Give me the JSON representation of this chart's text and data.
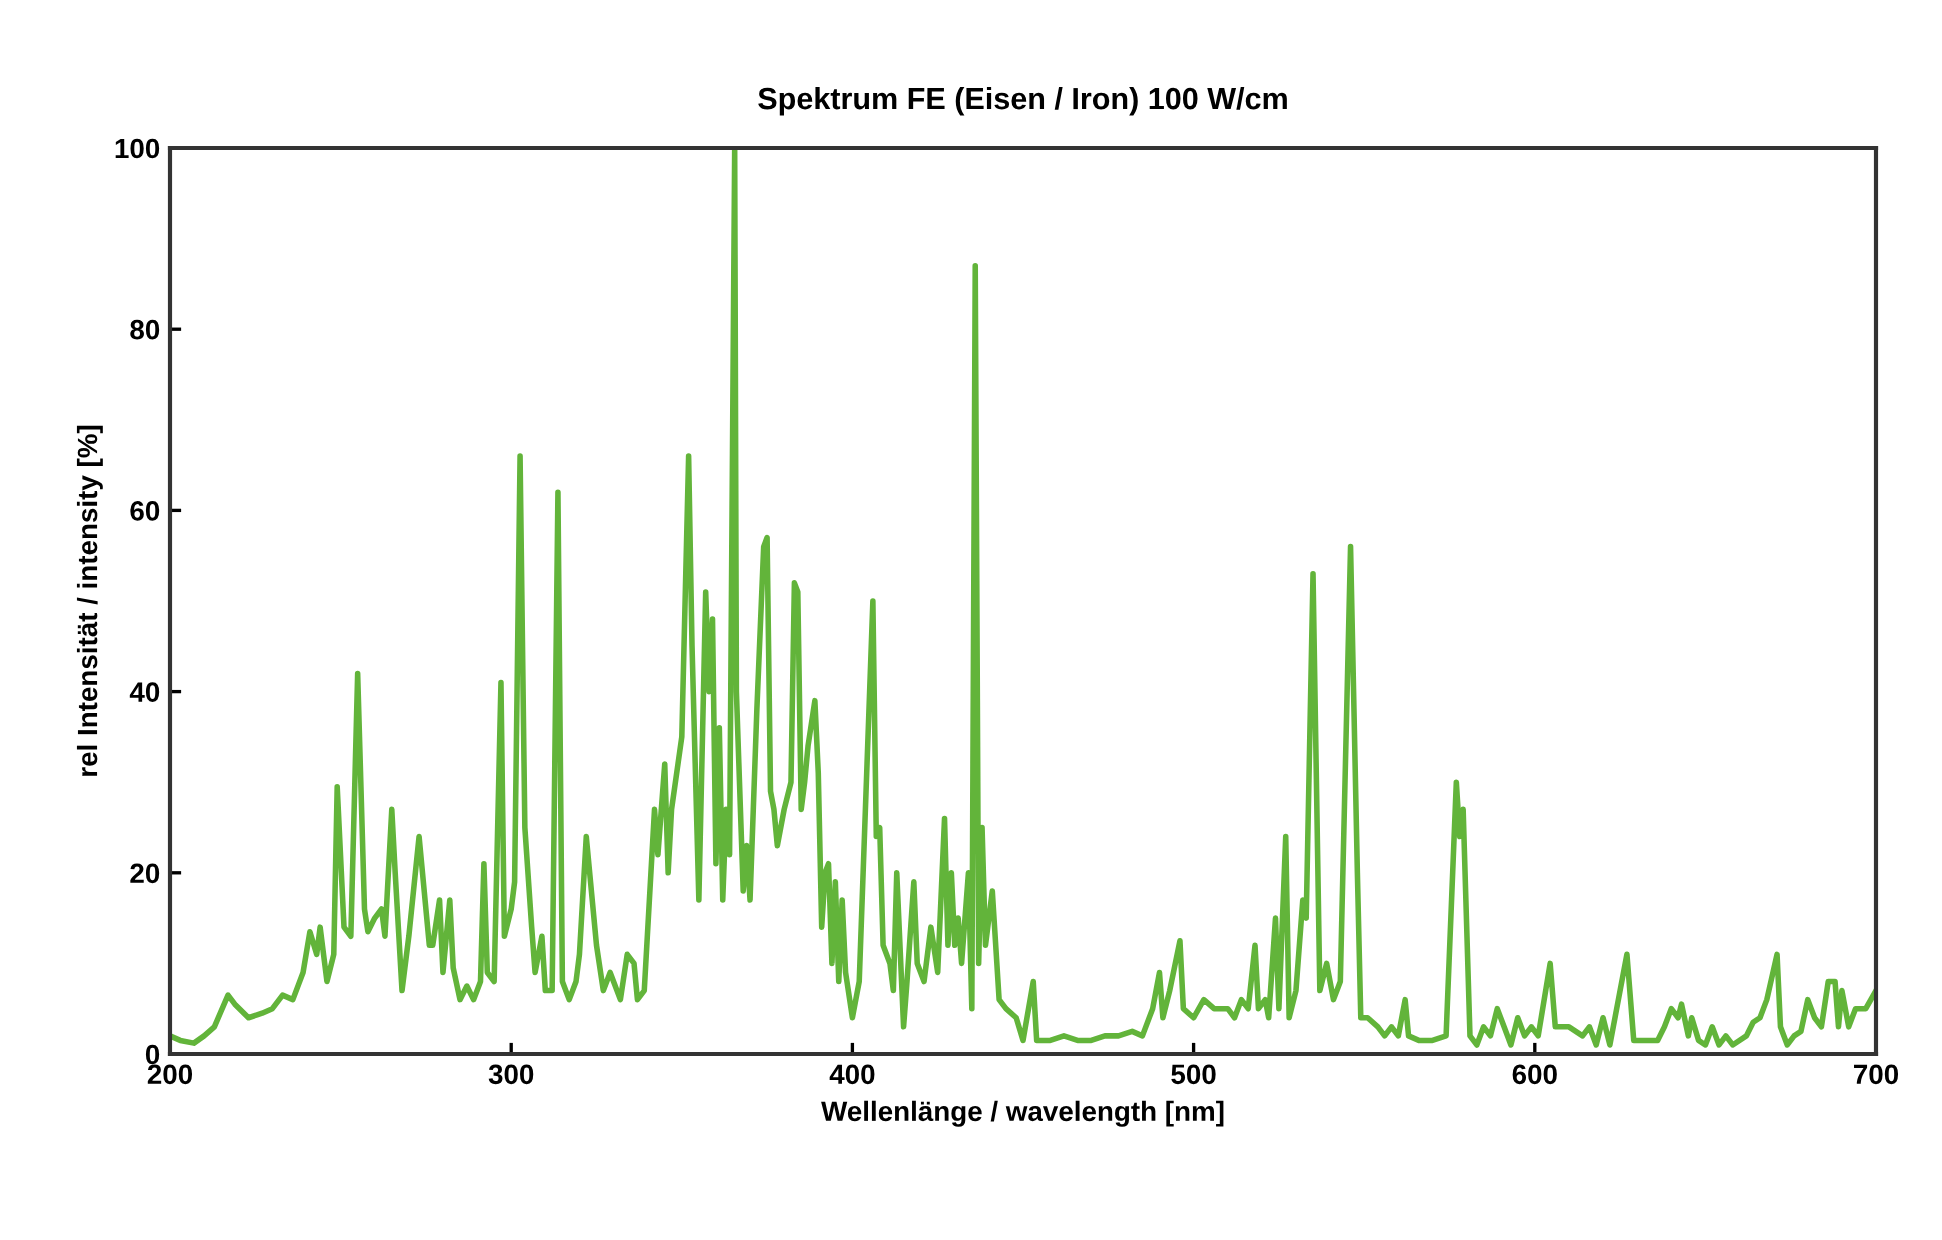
{
  "chart_data": {
    "type": "line",
    "title": "Spektrum FE (Eisen / Iron) 100 W/cm",
    "xlabel": "Wellenlänge / wavelength [nm]",
    "ylabel": "rel Intensität / intensity [%]",
    "xlim": [
      200,
      700
    ],
    "xticks": [
      200,
      300,
      400,
      500,
      600,
      700
    ],
    "ylim": [
      0,
      100
    ],
    "yticks": [
      0,
      20,
      40,
      60,
      80,
      100
    ],
    "grid": false,
    "legend": false,
    "marker": "none",
    "line_style": "solid",
    "series": [
      {
        "color": "#62b43a",
        "x": [
          200,
          203,
          207,
          210,
          213,
          217,
          219,
          223,
          227,
          230,
          233,
          236,
          239,
          241,
          243,
          244,
          246,
          248,
          249,
          251,
          253,
          255,
          257,
          258,
          260,
          262,
          263,
          265,
          266,
          268,
          270,
          273,
          276,
          277,
          279,
          280,
          282,
          283,
          285,
          287,
          289,
          291,
          292,
          293,
          295,
          297,
          298,
          300,
          301,
          302.6,
          304,
          306,
          307,
          309,
          310,
          312,
          313.7,
          315,
          317,
          319,
          320,
          322,
          325,
          327,
          329,
          330,
          332,
          334,
          336,
          337,
          339,
          342,
          343,
          345,
          346,
          347,
          350,
          352,
          353,
          355,
          357,
          358,
          359,
          360,
          361,
          362,
          363,
          364,
          365.5,
          366,
          368,
          369,
          370,
          372,
          374,
          375,
          376,
          377,
          378,
          380,
          382,
          383,
          384,
          385,
          386,
          387,
          389,
          390,
          391,
          392,
          393,
          394,
          395,
          396,
          397,
          398,
          400,
          402,
          406,
          407,
          408,
          409,
          411,
          412,
          413,
          415,
          416,
          418,
          419,
          421,
          423,
          425,
          427,
          428,
          429,
          430,
          431,
          432,
          434,
          435,
          436,
          437,
          438,
          439,
          441,
          443,
          445,
          448,
          450,
          453,
          454,
          458,
          462,
          466,
          470,
          474,
          478,
          482,
          485,
          488,
          490,
          491,
          493,
          496,
          497,
          500,
          503,
          506,
          510,
          512,
          514,
          516,
          518,
          519,
          521,
          522,
          524,
          525,
          527,
          528,
          530,
          532,
          533,
          535,
          537,
          539,
          541,
          543,
          546,
          548,
          549,
          551,
          554,
          556,
          558,
          560,
          562,
          563,
          566,
          570,
          574,
          577,
          578,
          579,
          581,
          583,
          585,
          587,
          589,
          591,
          593,
          595,
          597,
          599,
          601,
          604.5,
          606,
          610,
          614,
          616,
          618,
          620,
          622,
          625,
          627,
          629,
          632,
          636,
          638,
          640,
          642,
          643,
          645,
          646,
          648,
          650,
          652,
          654,
          656,
          658,
          662,
          664,
          666,
          668,
          671,
          672,
          674,
          676,
          678,
          680,
          682,
          684,
          686,
          688,
          689,
          690,
          692,
          694,
          697,
          700
        ],
        "values": [
          2,
          1.5,
          1.2,
          2,
          3,
          6.5,
          5.5,
          4,
          4.5,
          5,
          6.5,
          6,
          9,
          13.5,
          11,
          14,
          8,
          11,
          29.5,
          14,
          13,
          42,
          16,
          13.5,
          15,
          16,
          13,
          27,
          20,
          7,
          13,
          24,
          12,
          12,
          17,
          9,
          17,
          9.5,
          6,
          7.5,
          6,
          8,
          21,
          9,
          8,
          41,
          13,
          16,
          19,
          66,
          25,
          14,
          9,
          13,
          7,
          7,
          62,
          8,
          6,
          8,
          11,
          24,
          12,
          7,
          9,
          8,
          6,
          11,
          10,
          6,
          7,
          27,
          22,
          32,
          20,
          27,
          35,
          66,
          45,
          17,
          51,
          40,
          48,
          21,
          36,
          17,
          27,
          22,
          100,
          40,
          18,
          23,
          17,
          38,
          56,
          57,
          29,
          27,
          23,
          27,
          30,
          52,
          51,
          27,
          30,
          34,
          39,
          31,
          14,
          20,
          21,
          10,
          19,
          8,
          17,
          9,
          4,
          8,
          50,
          24,
          25,
          12,
          10,
          7,
          20,
          3,
          8,
          19,
          10,
          8,
          14,
          9,
          26,
          12,
          20,
          12,
          15,
          10,
          20,
          5,
          87,
          10,
          25,
          12,
          18,
          6,
          5,
          4,
          1.5,
          8,
          1.5,
          1.5,
          2,
          1.5,
          1.5,
          2,
          2,
          2.5,
          2,
          5,
          9,
          4,
          7,
          12.5,
          5,
          4,
          6,
          5,
          5,
          4,
          6,
          5,
          12,
          5,
          6,
          4,
          15,
          5,
          24,
          4,
          7,
          17,
          15,
          53,
          7,
          10,
          6,
          8,
          56,
          20,
          4,
          4,
          3,
          2,
          3,
          2,
          6,
          2,
          1.5,
          1.5,
          2,
          30,
          24,
          27,
          2,
          1,
          3,
          2,
          5,
          3,
          1,
          4,
          2,
          3,
          2,
          10,
          3,
          3,
          2,
          3,
          1,
          4,
          1,
          7,
          11,
          1.5,
          1.5,
          1.5,
          3,
          5,
          4,
          5.5,
          2,
          4,
          1.5,
          1,
          3,
          1,
          2,
          1,
          2,
          3.5,
          4,
          6,
          11,
          3,
          1,
          2,
          2.5,
          6,
          4,
          3,
          8,
          8,
          3,
          7,
          3,
          5,
          5,
          7
        ]
      }
    ]
  }
}
